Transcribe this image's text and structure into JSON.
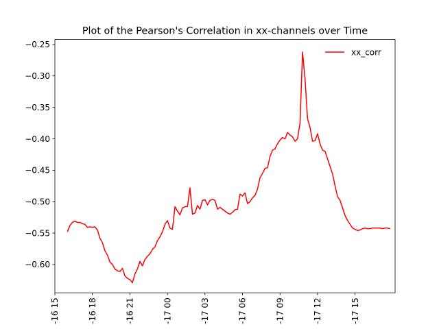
{
  "chart_data": {
    "type": "line",
    "title": "Plot of the Pearson's Correlation in xx-channels over Time",
    "xlabel": "",
    "ylabel": "",
    "x_ticks": [
      "-16 15",
      "-16 18",
      "-16 21",
      "-17 00",
      "-17 03",
      "-17 06",
      "-17 09",
      "-17 12",
      "-17 15"
    ],
    "xlim": [
      15.0,
      42.2
    ],
    "y_ticks": [
      "−0.25",
      "−0.30",
      "−0.35",
      "−0.40",
      "−0.45",
      "−0.50",
      "−0.55",
      "−0.60"
    ],
    "y_tick_values": [
      -0.25,
      -0.3,
      -0.35,
      -0.4,
      -0.45,
      -0.5,
      -0.55,
      -0.6
    ],
    "ylim": [
      -0.645,
      -0.242
    ],
    "legend_position": "top-right",
    "grid": false,
    "series": [
      {
        "name": "xx_corr",
        "color": "#ff0000",
        "x": [
          16.0,
          16.2,
          16.4,
          16.6,
          16.8,
          17.0,
          17.2,
          17.4,
          17.6,
          17.8,
          18.0,
          18.2,
          18.4,
          18.6,
          18.8,
          19.0,
          19.2,
          19.4,
          19.6,
          19.8,
          20.0,
          20.2,
          20.4,
          20.6,
          20.8,
          21.0,
          21.2,
          21.4,
          21.6,
          21.8,
          22.0,
          22.2,
          22.4,
          22.6,
          22.8,
          23.0,
          23.2,
          23.4,
          23.6,
          23.8,
          24.0,
          24.2,
          24.4,
          24.6,
          24.8,
          25.0,
          25.2,
          25.4,
          25.6,
          25.8,
          26.0,
          26.2,
          26.4,
          26.6,
          26.8,
          27.0,
          27.2,
          27.4,
          27.6,
          27.8,
          28.0,
          28.2,
          28.4,
          28.6,
          28.8,
          29.0,
          29.2,
          29.4,
          29.6,
          29.8,
          30.0,
          30.2,
          30.4,
          30.6,
          30.8,
          31.0,
          31.2,
          31.4,
          31.6,
          31.8,
          32.0,
          32.2,
          32.4,
          32.6,
          32.8,
          33.0,
          33.2,
          33.4,
          33.6,
          33.8,
          34.0,
          34.2,
          34.4,
          34.6,
          34.8,
          35.0,
          35.2,
          35.4,
          35.6,
          35.8,
          36.0,
          36.2,
          36.4,
          36.6,
          36.8,
          37.0,
          37.2,
          37.4,
          37.6,
          37.8,
          38.0,
          38.2,
          38.4,
          38.6,
          38.8,
          39.0,
          39.2,
          39.4,
          39.6,
          39.8,
          40.0,
          40.2,
          40.4,
          40.6,
          40.8,
          41.0,
          41.2,
          41.4,
          41.6,
          41.8
        ],
        "y": [
          -0.548,
          -0.538,
          -0.533,
          -0.531,
          -0.533,
          -0.533,
          -0.535,
          -0.536,
          -0.541,
          -0.54,
          -0.541,
          -0.54,
          -0.545,
          -0.558,
          -0.565,
          -0.578,
          -0.585,
          -0.596,
          -0.6,
          -0.607,
          -0.61,
          -0.611,
          -0.606,
          -0.618,
          -0.622,
          -0.624,
          -0.629,
          -0.615,
          -0.607,
          -0.595,
          -0.602,
          -0.592,
          -0.587,
          -0.583,
          -0.576,
          -0.572,
          -0.562,
          -0.556,
          -0.548,
          -0.536,
          -0.53,
          -0.542,
          -0.544,
          -0.508,
          -0.515,
          -0.521,
          -0.51,
          -0.508,
          -0.508,
          -0.478,
          -0.52,
          -0.518,
          -0.506,
          -0.512,
          -0.498,
          -0.497,
          -0.505,
          -0.498,
          -0.496,
          -0.498,
          -0.512,
          -0.509,
          -0.512,
          -0.515,
          -0.518,
          -0.52,
          -0.517,
          -0.513,
          -0.512,
          -0.488,
          -0.491,
          -0.486,
          -0.503,
          -0.5,
          -0.494,
          -0.49,
          -0.48,
          -0.462,
          -0.455,
          -0.447,
          -0.446,
          -0.428,
          -0.418,
          -0.416,
          -0.408,
          -0.402,
          -0.398,
          -0.4,
          -0.39,
          -0.394,
          -0.397,
          -0.404,
          -0.4,
          -0.375,
          -0.262,
          -0.305,
          -0.368,
          -0.382,
          -0.404,
          -0.403,
          -0.392,
          -0.408,
          -0.418,
          -0.42,
          -0.432,
          -0.444,
          -0.456,
          -0.475,
          -0.492,
          -0.498,
          -0.51,
          -0.522,
          -0.53,
          -0.536,
          -0.542,
          -0.544,
          -0.546,
          -0.545,
          -0.543,
          -0.542,
          -0.543,
          -0.543,
          -0.542,
          -0.542,
          -0.542,
          -0.542,
          -0.543,
          -0.542,
          -0.542,
          -0.543
        ]
      }
    ]
  }
}
